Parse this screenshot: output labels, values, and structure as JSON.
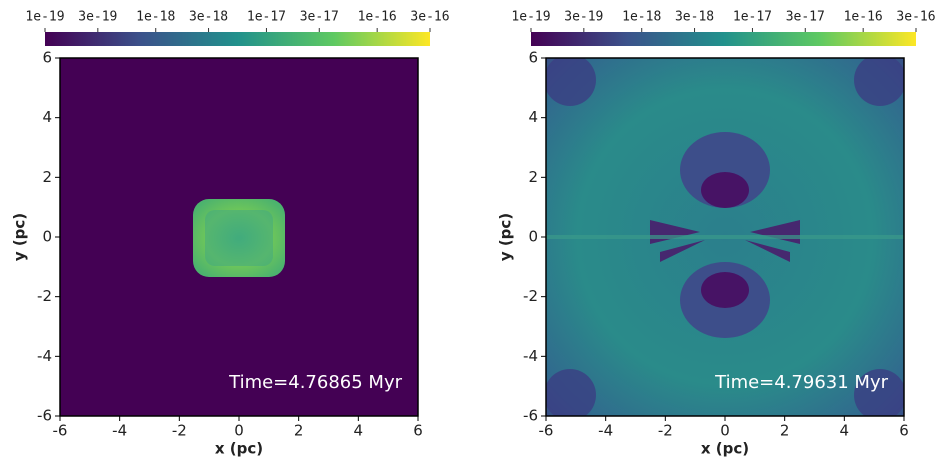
{
  "chart_data": [
    {
      "type": "heatmap",
      "xlabel": "x (pc)",
      "ylabel": "y (pc)",
      "annotation": "Time=4.76865 Myr",
      "xlim": [
        -6,
        6
      ],
      "xticks": [
        -6,
        -4,
        -2,
        0,
        2,
        4,
        6
      ],
      "ylim": [
        -6,
        6
      ],
      "yticks": [
        -6,
        -4,
        -2,
        0,
        2,
        4,
        6
      ],
      "colorbar": {
        "log": true,
        "lim": [
          1e-19,
          3e-16
        ],
        "ticks": [
          {
            "value": 1e-19,
            "label": "1e-19"
          },
          {
            "value": 3e-19,
            "label": "3e-19"
          },
          {
            "value": 1e-18,
            "label": "1e-18"
          },
          {
            "value": 3e-18,
            "label": "3e-18"
          },
          {
            "value": 1e-17,
            "label": "1e-17"
          },
          {
            "value": 3e-17,
            "label": "3e-17"
          },
          {
            "value": 1e-16,
            "label": "1e-16"
          },
          {
            "value": 3e-16,
            "label": "3e-16"
          }
        ],
        "colors": [
          "#440154",
          "#3b528b",
          "#21918c",
          "#5ec962",
          "#fde725"
        ]
      }
    },
    {
      "type": "heatmap",
      "xlabel": "x (pc)",
      "ylabel": "y (pc)",
      "annotation": "Time=4.79631 Myr",
      "xlim": [
        -6,
        6
      ],
      "xticks": [
        -6,
        -4,
        -2,
        0,
        2,
        4,
        6
      ],
      "ylim": [
        -6,
        6
      ],
      "yticks": [
        -6,
        -4,
        -2,
        0,
        2,
        4,
        6
      ],
      "colorbar": {
        "log": true,
        "lim": [
          1e-19,
          3e-16
        ],
        "ticks": [
          {
            "value": 1e-19,
            "label": "1e-19"
          },
          {
            "value": 3e-19,
            "label": "3e-19"
          },
          {
            "value": 1e-18,
            "label": "1e-18"
          },
          {
            "value": 3e-18,
            "label": "3e-18"
          },
          {
            "value": 1e-17,
            "label": "1e-17"
          },
          {
            "value": 3e-17,
            "label": "3e-17"
          },
          {
            "value": 1e-16,
            "label": "1e-16"
          },
          {
            "value": 3e-16,
            "label": "3e-16"
          }
        ],
        "colors": [
          "#440154",
          "#3b528b",
          "#21918c",
          "#5ec962",
          "#fde725"
        ]
      }
    }
  ]
}
